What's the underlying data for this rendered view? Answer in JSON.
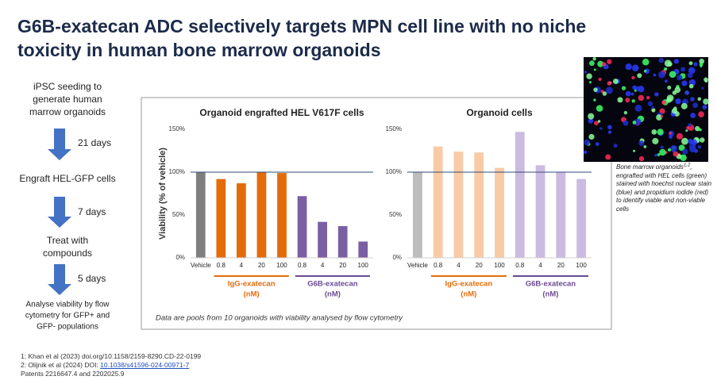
{
  "title": [
    "G6B-exatecan ADC selectively targets MPN cell line with no niche",
    "toxicity in human bone marrow organoids"
  ],
  "workflow": {
    "steps": [
      [
        "iPSC seeding to",
        "generate human",
        "marrow organoids"
      ],
      [
        "Engraft HEL-GFP cells"
      ],
      [
        "Treat with",
        "compounds"
      ],
      [
        "Analyse viability by flow",
        "cytometry for GFP+ and",
        "GFP- populations"
      ]
    ],
    "intervals": [
      "21 days",
      "7 days",
      "5 days"
    ]
  },
  "chart_data": [
    {
      "type": "bar",
      "title": "Organoid engrafted HEL V617F cells",
      "y_label": "Viability (% of vehicle)",
      "ylim": [
        0,
        150
      ],
      "yticks": [
        {
          "value": 0,
          "label": "0%"
        },
        {
          "value": 50,
          "label": "50%"
        },
        {
          "value": 100,
          "label": "100%"
        },
        {
          "value": 150,
          "label": "150%"
        }
      ],
      "reference_line": 100,
      "reference_color": "#2f4b7c",
      "control": {
        "category": "Vehicle",
        "value": 100,
        "color": "#7f7f7f"
      },
      "groups": [
        {
          "name": "IgG-exatecan",
          "unit": "(nM)",
          "color": "#e36c0a",
          "label_color": "#e36c0a",
          "categories": [
            "0.8",
            "4",
            "20",
            "100"
          ],
          "values": [
            92,
            87,
            100,
            99
          ]
        },
        {
          "name": "G6B-exatecan",
          "unit": "(nM)",
          "color": "#7b5fa3",
          "label_color": "#6a4a94",
          "categories": [
            "0.8",
            "4",
            "20",
            "100"
          ],
          "values": [
            72,
            42,
            37,
            19
          ]
        }
      ]
    },
    {
      "type": "bar",
      "title": "Organoid cells",
      "ylim": [
        0,
        150
      ],
      "yticks": [
        {
          "value": 0,
          "label": "0%"
        },
        {
          "value": 50,
          "label": "50%"
        },
        {
          "value": 100,
          "label": "100%"
        },
        {
          "value": 150,
          "label": "150%"
        }
      ],
      "reference_line": 100,
      "reference_color": "#2f4b7c",
      "control": {
        "category": "Vehicle",
        "value": 100,
        "color": "#bdbdbd"
      },
      "groups": [
        {
          "name": "IgG-exatecan",
          "unit": "(nM)",
          "color": "#f8cba6",
          "label_color": "#e36c0a",
          "categories": [
            "0.8",
            "4",
            "20",
            "100"
          ],
          "values": [
            130,
            124,
            123,
            105
          ]
        },
        {
          "name": "G6B-exatecan",
          "unit": "(nM)",
          "color": "#cbbbe0",
          "label_color": "#6a4a94",
          "categories": [
            "0.8",
            "4",
            "20",
            "100"
          ],
          "values": [
            147,
            108,
            100,
            92
          ]
        }
      ]
    }
  ],
  "chart_note": "Data are pools from 10 organoids with viability analysed by flow cytometry",
  "image_caption": {
    "before": "Bone marrow organoids",
    "superscript": "1,2",
    "after": ", engrafted with HEL cells (green) stained with hoechst nuclear stain (blue) and propidium iodide (red) to identify viable and non-viable cells"
  },
  "references": {
    "first": "1: Khan et al (2023) doi.org/10.1158/2159-8290.CD-22-0199",
    "second": {
      "text": "2: Olijnik et al (2024) DOI: ",
      "link": "10.1038/s41596-024-00971-7"
    },
    "patents": "Patents 2216647.4 and 2202025.9"
  }
}
